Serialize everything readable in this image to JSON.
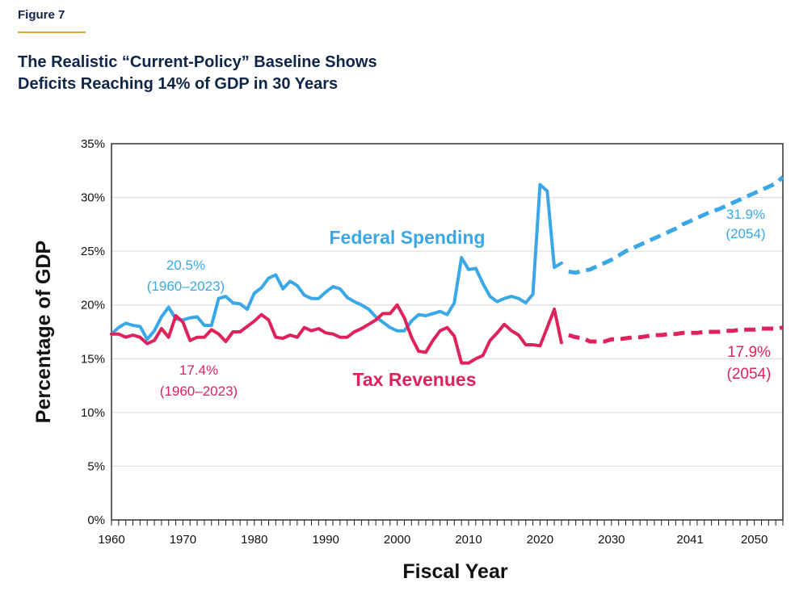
{
  "figure": {
    "label": "Figure 7",
    "accent": "#e2a33a",
    "title_color": "#0f2547"
  },
  "title_lines": [
    "The Realistic “Current-Policy” Baseline Shows",
    "Deficits Reaching 14% of GDP in 30 Years"
  ],
  "chart_data": {
    "type": "line",
    "xlabel": "Fiscal Year",
    "ylabel": "Percentage of GDP",
    "xlim": [
      1960,
      2054
    ],
    "ylim": [
      0,
      35
    ],
    "x_ticks": [
      1960,
      1970,
      1980,
      1990,
      2000,
      2010,
      2020,
      2030,
      2041,
      2050
    ],
    "y_ticks": [
      "0%",
      "5%",
      "10%",
      "15%",
      "20%",
      "25%",
      "30%",
      "35%"
    ],
    "grid": "horizontal",
    "series": [
      {
        "name": "Federal Spending",
        "color": "#3aa8e6",
        "historical": {
          "x": [
            1960,
            1961,
            1962,
            1963,
            1964,
            1965,
            1966,
            1967,
            1968,
            1969,
            1970,
            1971,
            1972,
            1973,
            1974,
            1975,
            1976,
            1977,
            1978,
            1979,
            1980,
            1981,
            1982,
            1983,
            1984,
            1985,
            1986,
            1987,
            1988,
            1989,
            1990,
            1991,
            1992,
            1993,
            1994,
            1995,
            1996,
            1997,
            1998,
            1999,
            2000,
            2001,
            2002,
            2003,
            2004,
            2005,
            2006,
            2007,
            2008,
            2009,
            2010,
            2011,
            2012,
            2013,
            2014,
            2015,
            2016,
            2017,
            2018,
            2019,
            2020,
            2021,
            2022,
            2023
          ],
          "y": [
            17.3,
            17.9,
            18.3,
            18.1,
            18.0,
            16.8,
            17.6,
            18.9,
            19.8,
            18.7,
            18.6,
            18.8,
            18.9,
            18.1,
            18.1,
            20.6,
            20.8,
            20.2,
            20.1,
            19.6,
            21.1,
            21.6,
            22.5,
            22.8,
            21.5,
            22.2,
            21.8,
            20.9,
            20.6,
            20.6,
            21.2,
            21.7,
            21.5,
            20.7,
            20.3,
            20.0,
            19.6,
            18.9,
            18.4,
            17.9,
            17.6,
            17.6,
            18.5,
            19.1,
            19.0,
            19.2,
            19.4,
            19.1,
            20.2,
            24.4,
            23.3,
            23.4,
            22.0,
            20.8,
            20.3,
            20.6,
            20.8,
            20.6,
            20.2,
            21.0,
            31.2,
            30.6,
            23.5,
            23.9
          ]
        },
        "projection": {
          "x": [
            2024,
            2025,
            2026,
            2027,
            2028,
            2029,
            2030,
            2031,
            2032,
            2033,
            2034,
            2035,
            2036,
            2037,
            2038,
            2039,
            2040,
            2041,
            2042,
            2043,
            2044,
            2045,
            2046,
            2047,
            2048,
            2049,
            2050,
            2051,
            2052,
            2053,
            2054
          ],
          "y": [
            23.1,
            23.0,
            23.2,
            23.3,
            23.6,
            23.9,
            24.2,
            24.6,
            25.0,
            25.3,
            25.6,
            25.9,
            26.2,
            26.5,
            26.8,
            27.1,
            27.5,
            27.8,
            28.1,
            28.4,
            28.7,
            28.9,
            29.2,
            29.5,
            29.8,
            30.1,
            30.4,
            30.7,
            31.0,
            31.3,
            31.9
          ]
        },
        "label": "Federal Spending",
        "annotation_hist": [
          "20.5%",
          "(1960–2023)"
        ],
        "annotation_proj": [
          "31.9%",
          "(2054)"
        ]
      },
      {
        "name": "Tax Revenues",
        "color": "#e0225c",
        "historical": {
          "x": [
            1960,
            1961,
            1962,
            1963,
            1964,
            1965,
            1966,
            1967,
            1968,
            1969,
            1970,
            1971,
            1972,
            1973,
            1974,
            1975,
            1976,
            1977,
            1978,
            1979,
            1980,
            1981,
            1982,
            1983,
            1984,
            1985,
            1986,
            1987,
            1988,
            1989,
            1990,
            1991,
            1992,
            1993,
            1994,
            1995,
            1996,
            1997,
            1998,
            1999,
            2000,
            2001,
            2002,
            2003,
            2004,
            2005,
            2006,
            2007,
            2008,
            2009,
            2010,
            2011,
            2012,
            2013,
            2014,
            2015,
            2016,
            2017,
            2018,
            2019,
            2020,
            2021,
            2022,
            2023
          ],
          "y": [
            17.3,
            17.3,
            17.0,
            17.2,
            17.0,
            16.4,
            16.7,
            17.8,
            17.0,
            19.0,
            18.4,
            16.7,
            17.0,
            17.0,
            17.7,
            17.3,
            16.6,
            17.5,
            17.5,
            18.0,
            18.5,
            19.1,
            18.6,
            17.0,
            16.9,
            17.2,
            17.0,
            17.9,
            17.6,
            17.8,
            17.4,
            17.3,
            17.0,
            17.0,
            17.5,
            17.8,
            18.2,
            18.6,
            19.2,
            19.2,
            20.0,
            18.8,
            17.0,
            15.7,
            15.6,
            16.7,
            17.6,
            17.9,
            17.1,
            14.6,
            14.6,
            15.0,
            15.3,
            16.7,
            17.4,
            18.2,
            17.6,
            17.2,
            16.3,
            16.3,
            16.2,
            17.9,
            19.6,
            16.5
          ]
        },
        "projection": {
          "x": [
            2024,
            2025,
            2026,
            2027,
            2028,
            2029,
            2030,
            2031,
            2032,
            2033,
            2034,
            2035,
            2036,
            2037,
            2038,
            2039,
            2040,
            2041,
            2042,
            2043,
            2044,
            2045,
            2046,
            2047,
            2048,
            2049,
            2050,
            2051,
            2052,
            2053,
            2054
          ],
          "y": [
            17.2,
            17.0,
            16.9,
            16.6,
            16.6,
            16.6,
            16.8,
            16.8,
            16.9,
            17.0,
            17.0,
            17.1,
            17.2,
            17.2,
            17.3,
            17.3,
            17.4,
            17.4,
            17.4,
            17.5,
            17.5,
            17.5,
            17.6,
            17.6,
            17.7,
            17.7,
            17.7,
            17.8,
            17.8,
            17.8,
            17.9
          ]
        },
        "label": "Tax Revenues",
        "annotation_hist": [
          "17.4%",
          "(1960–2023)"
        ],
        "annotation_proj": [
          "17.9%",
          "(2054)"
        ]
      }
    ]
  }
}
